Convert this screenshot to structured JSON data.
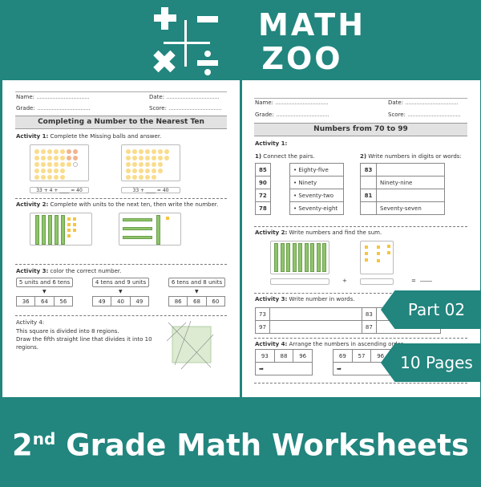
{
  "brand": {
    "logo_line1": "MATH",
    "logo_line2": "ZOO",
    "teal": "#22857e"
  },
  "header_fields": {
    "name": "Name:",
    "date": "Date:",
    "grade": "Grade:",
    "score": "Score:"
  },
  "left": {
    "title": "Completing a Number to the Nearest Ten",
    "a1_label": "Activity 1:",
    "a1_text": " Complete the Missing balls and answer.",
    "a1_eq1": "33 + 4 + ____ = 40",
    "a1_eq2": "33 + ____ = 40",
    "a2_label": "Activity 2:",
    "a2_text": " Complete with units to the next ten, then write the number.",
    "a3_label": "Activity 3:",
    "a3_text": " color the correct number.",
    "a3_groups": [
      {
        "prompt": "5 units and 6 tens",
        "options": [
          "36",
          "64",
          "56"
        ]
      },
      {
        "prompt": "4 tens and 9 units",
        "options": [
          "49",
          "40",
          "49"
        ]
      },
      {
        "prompt": "6 tens and 8 units",
        "options": [
          "86",
          "68",
          "60"
        ]
      }
    ],
    "a4_label": "Activity 4:",
    "a4_text": [
      "This square is divided into 8 regions.",
      "Draw the fifth straight line that divides it into 10",
      "regions."
    ]
  },
  "right": {
    "title": "Numbers from 70 to 99",
    "a1_label": "Activity 1:",
    "a1_part1_num": "1)",
    "a1_part1": " Connect the pairs.",
    "a1_part2_num": "2)",
    "a1_part2": " Write numbers in digits or words:",
    "pairs_numbers": [
      "85",
      "90",
      "72",
      "78"
    ],
    "pairs_words": [
      "Eighty-five",
      "Ninety",
      "Seventy-two",
      "Seventy-eight"
    ],
    "write_rows": [
      [
        "83",
        ""
      ],
      [
        "",
        "Ninety-nine"
      ],
      [
        "81",
        ""
      ],
      [
        "",
        "Seventy-seven"
      ]
    ],
    "a2_label": "Activity 2:",
    "a2_text": " Write numbers and find the sum.",
    "plus": "+",
    "equals": "=",
    "a3_label": "Activity 3:",
    "a3_text": " Write number in words.",
    "a3_numbers": [
      "73",
      "97",
      "83",
      "87"
    ],
    "a4_label": "Activity 4:",
    "a4_text": " Arrange the numbers in ascending order.",
    "a4_set1": [
      "93",
      "88",
      "96"
    ],
    "a4_set2": [
      "69",
      "57",
      "96"
    ],
    "arrow": "➡"
  },
  "badges": {
    "part": "Part 02",
    "pages": "10 Pages"
  },
  "footer": {
    "grade_num": "2",
    "grade_suffix": "nd",
    "rest": " Grade Math Worksheets"
  }
}
